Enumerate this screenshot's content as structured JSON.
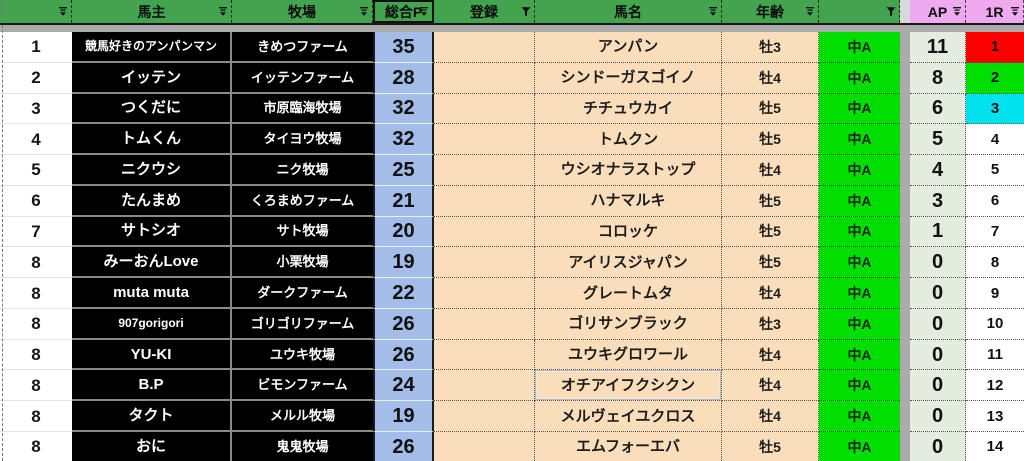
{
  "app": {
    "title": "horse-owner-ranking-sheet"
  },
  "colors": {
    "header_green": "#44A34E",
    "header_pink": "#EFA9EF",
    "divider_gray": "#ABABAB",
    "black_cell": "#000000",
    "blue_cell": "#A3BCE8",
    "peach_cell": "#FADDBB",
    "bright_green": "#00DF00",
    "ap_cell": "#E4ECDF",
    "rank1_red": "#FE0000",
    "rank2_green": "#00DF00",
    "rank3_cyan": "#00E2EE",
    "text_dark": "#111111",
    "text_white": "#FFFFFF"
  },
  "header": {
    "columns": [
      {
        "id": "rank",
        "label": "",
        "filter": "filter-dropdown",
        "accent": "green"
      },
      {
        "id": "owner",
        "label": "馬主",
        "filter": "filter-dropdown",
        "accent": "green"
      },
      {
        "id": "farm",
        "label": "牧場",
        "filter": "filter-dropdown",
        "accent": "green"
      },
      {
        "id": "total-p",
        "label": "総合P",
        "filter": "filter-dropdown",
        "accent": "green",
        "boxed": true
      },
      {
        "id": "registration",
        "label": "登録",
        "filter": "filter-funnel",
        "accent": "green"
      },
      {
        "id": "horse-name",
        "label": "馬名",
        "filter": "filter-dropdown",
        "accent": "green"
      },
      {
        "id": "age",
        "label": "年齢",
        "filter": "filter-dropdown",
        "accent": "green"
      },
      {
        "id": "grade",
        "label": "",
        "filter": "filter-funnel",
        "accent": "green"
      },
      {
        "id": "ap",
        "label": "AP",
        "filter": "filter-dropdown",
        "accent": "pink"
      },
      {
        "id": "1r",
        "label": "1R",
        "filter": "filter-dropdown",
        "accent": "pink"
      }
    ]
  },
  "rows": [
    {
      "rank": "1",
      "owner": "競馬好きのアンパンマン",
      "farm": "きめつファーム",
      "total_p": "35",
      "reg": "",
      "horse": "アンパン",
      "age": "牡3",
      "grade": "中A",
      "ap": "11",
      "r1": "1",
      "r1_bg": "rank1_red"
    },
    {
      "rank": "2",
      "owner": "イッテン",
      "farm": "イッテンファーム",
      "total_p": "28",
      "reg": "",
      "horse": "シンドーガスゴイノ",
      "age": "牡4",
      "grade": "中A",
      "ap": "8",
      "r1": "2",
      "r1_bg": "rank2_green"
    },
    {
      "rank": "3",
      "owner": "つくだに",
      "farm": "市原臨海牧場",
      "total_p": "32",
      "reg": "",
      "horse": "チチュウカイ",
      "age": "牡5",
      "grade": "中A",
      "ap": "6",
      "r1": "3",
      "r1_bg": "rank3_cyan"
    },
    {
      "rank": "4",
      "owner": "トムくん",
      "farm": "タイヨウ牧場",
      "total_p": "32",
      "reg": "",
      "horse": "トムクン",
      "age": "牡5",
      "grade": "中A",
      "ap": "5",
      "r1": "4"
    },
    {
      "rank": "5",
      "owner": "ニクウシ",
      "farm": "ニク牧場",
      "total_p": "25",
      "reg": "",
      "horse": "ウシオナラストップ",
      "age": "牡4",
      "grade": "中A",
      "ap": "4",
      "r1": "5"
    },
    {
      "rank": "6",
      "owner": "たんまめ",
      "farm": "くろまめファーム",
      "total_p": "21",
      "reg": "",
      "horse": "ハナマルキ",
      "age": "牡5",
      "grade": "中A",
      "ap": "3",
      "r1": "6"
    },
    {
      "rank": "7",
      "owner": "サトシオ",
      "farm": "サト牧場",
      "total_p": "20",
      "reg": "",
      "horse": "コロッケ",
      "age": "牡5",
      "grade": "中A",
      "ap": "1",
      "r1": "7"
    },
    {
      "rank": "8",
      "owner": "みーおんLove",
      "farm": "小栗牧場",
      "total_p": "19",
      "reg": "",
      "horse": "アイリスジャパン",
      "age": "牡5",
      "grade": "中A",
      "ap": "0",
      "r1": "8"
    },
    {
      "rank": "8",
      "owner": "muta muta",
      "farm": "ダークファーム",
      "total_p": "22",
      "reg": "",
      "horse": "グレートムタ",
      "age": "牡4",
      "grade": "中A",
      "ap": "0",
      "r1": "9"
    },
    {
      "rank": "8",
      "owner": "907gorigori",
      "farm": "ゴリゴリファーム",
      "total_p": "26",
      "reg": "",
      "horse": "ゴリサンブラック",
      "age": "牡3",
      "grade": "中A",
      "ap": "0",
      "r1": "10"
    },
    {
      "rank": "8",
      "owner": "YU-KI",
      "farm": "ユウキ牧場",
      "total_p": "26",
      "reg": "",
      "horse": "ユウキグロワール",
      "age": "牡4",
      "grade": "中A",
      "ap": "0",
      "r1": "11"
    },
    {
      "rank": "8",
      "owner": "B.P",
      "farm": "ビモンファーム",
      "total_p": "24",
      "reg": "",
      "horse": "オチアイフクシクン",
      "age": "牡4",
      "grade": "中A",
      "ap": "0",
      "r1": "12",
      "selected_horse": true
    },
    {
      "rank": "8",
      "owner": "タクト",
      "farm": "メルル牧場",
      "total_p": "19",
      "reg": "",
      "horse": "メルヴェイユクロス",
      "age": "牡4",
      "grade": "中A",
      "ap": "0",
      "r1": "13"
    },
    {
      "rank": "8",
      "owner": "おに",
      "farm": "鬼鬼牧場",
      "total_p": "26",
      "reg": "",
      "horse": "エムフォーエバ",
      "age": "牡5",
      "grade": "中A",
      "ap": "0",
      "r1": "14"
    }
  ]
}
